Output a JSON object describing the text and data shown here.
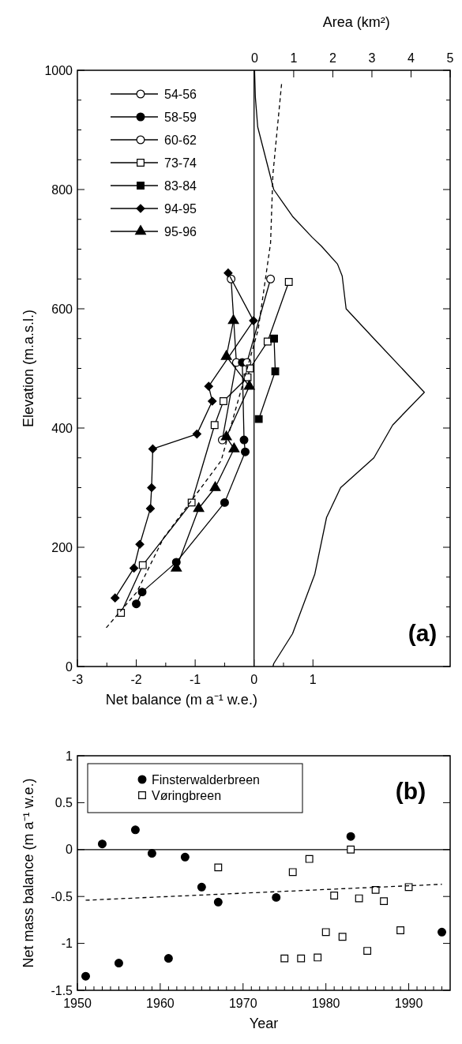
{
  "chart_data": [
    {
      "type": "line",
      "x2label": "Area (km²)",
      "xlabel": "Net balance (m a⁻¹ w.e.)",
      "ylabel": "Elevation (m.a.s.l.)",
      "xlim": [
        -3,
        3.33
      ],
      "ylim": [
        0,
        1000
      ],
      "x2lim": [
        -4.53,
        5
      ],
      "xticks": [
        -3,
        {
          "value": -2.5,
          "label": null
        },
        -2,
        {
          "value": -1.5,
          "label": null
        },
        -1,
        {
          "value": -0.5,
          "label": null
        },
        0,
        {
          "value": 0.5,
          "label": null
        },
        1
      ],
      "x2ticks": [
        0,
        1,
        2,
        3,
        4,
        5
      ],
      "yticks": [
        0,
        {
          "value": 50,
          "label": null
        },
        {
          "value": 100,
          "label": null
        },
        {
          "value": 150,
          "label": null
        },
        200,
        {
          "value": 250,
          "label": null
        },
        {
          "value": 300,
          "label": null
        },
        {
          "value": 350,
          "label": null
        },
        400,
        {
          "value": 450,
          "label": null
        },
        {
          "value": 500,
          "label": null
        },
        {
          "value": 550,
          "label": null
        },
        600,
        {
          "value": 650,
          "label": null
        },
        {
          "value": 700,
          "label": null
        },
        {
          "value": 750,
          "label": null
        },
        800,
        {
          "value": 850,
          "label": null
        },
        {
          "value": 900,
          "label": null
        },
        {
          "value": 950,
          "label": null
        },
        1000
      ],
      "legend": "top left",
      "annotations": [
        "(a)"
      ],
      "ref_lines": [
        {
          "axis": "x",
          "value": 0,
          "color": "#000000"
        }
      ],
      "series": [
        {
          "name": "54-56",
          "color": "#000000",
          "marker": "circle",
          "colors": [
            "#ffffff",
            "#ffffff",
            "#ffffff"
          ],
          "x": [
            -0.39,
            -0.3,
            -0.54
          ],
          "values": [
            650,
            510,
            380
          ]
        },
        {
          "name": "58-59",
          "color": "#000000",
          "marker": "circle",
          "x": [
            -0.2,
            -0.17,
            -0.15,
            -0.5,
            -1.32,
            -1.9,
            -2.0
          ],
          "values": [
            510,
            380,
            360,
            275,
            175,
            125,
            105
          ]
        },
        {
          "name": "60-62",
          "color": "#000000",
          "marker": "circle",
          "colors": [
            "#ffffff",
            "#ffffff"
          ],
          "x": [
            0.28,
            -0.12
          ],
          "values": [
            650,
            510
          ]
        },
        {
          "name": "73-74",
          "color": "#000000",
          "marker": "square",
          "colors": [
            "#ffffff",
            "#ffffff",
            "#ffffff",
            "#ffffff",
            "#ffffff",
            "#ffffff",
            "#ffffff",
            "#ffffff",
            "#ffffff"
          ],
          "x": [
            0.59,
            0.23,
            -0.07,
            -0.11,
            -0.52,
            -0.67,
            -1.06,
            -1.89,
            -2.26
          ],
          "values": [
            645,
            545,
            500,
            485,
            445,
            405,
            275,
            170,
            90
          ]
        },
        {
          "name": "83-84",
          "color": "#000000",
          "marker": "square",
          "x": [
            0.34,
            0.36,
            0.08
          ],
          "values": [
            550,
            495,
            415
          ]
        },
        {
          "name": "94-95",
          "color": "#000000",
          "marker": "diamond",
          "x": [
            -0.44,
            -0.01,
            -0.77,
            -0.71,
            -0.97,
            -1.72,
            -1.74,
            -1.76,
            -1.94,
            -2.04,
            -2.36
          ],
          "values": [
            660,
            580,
            470,
            445,
            390,
            365,
            300,
            265,
            205,
            165,
            115
          ]
        },
        {
          "name": "95-96",
          "color": "#000000",
          "marker": "triangle",
          "x": [
            -0.35,
            -0.47,
            -0.08,
            -0.47,
            -0.34,
            -0.66,
            -0.94,
            -1.32
          ],
          "values": [
            580,
            520,
            470,
            385,
            365,
            300,
            265,
            165
          ]
        },
        {
          "color": "#000000",
          "marker": "none",
          "line_style": "dashed",
          "x": [
            -2.51,
            -1.99,
            -1.54,
            -0.56,
            0.07,
            0.28,
            0.32,
            0.47
          ],
          "values": [
            65,
            125,
            215,
            345,
            565,
            710,
            825,
            980
          ]
        },
        {
          "color": "#000000",
          "marker": "none",
          "axis": "x2",
          "x": [
            0,
            0.02,
            0.08,
            0.49,
            0.97,
            1.47,
            1.71,
            2.12,
            2.24,
            2.34,
            3.05,
            4.34,
            3.53,
            3.05,
            2.2,
            1.84,
            1.54,
            0.97,
            0.49,
            0.47
          ],
          "values": [
            1000,
            955,
            905,
            800,
            755,
            720,
            705,
            675,
            655,
            600,
            550,
            460,
            405,
            350,
            300,
            250,
            155,
            55,
            5,
            0
          ]
        }
      ]
    },
    {
      "type": "scatter",
      "xlabel": "Year",
      "ylabel": "Net mass balance (m a⁻¹ w.e.)",
      "xlim": [
        1950,
        1995
      ],
      "ylim": [
        -1.5,
        1
      ],
      "xticks": [
        1950,
        {
          "value": 1951,
          "label": null
        },
        {
          "value": 1952,
          "label": null
        },
        {
          "value": 1953,
          "label": null
        },
        {
          "value": 1954,
          "label": null
        },
        {
          "value": 1955,
          "label": null
        },
        {
          "value": 1956,
          "label": null
        },
        {
          "value": 1957,
          "label": null
        },
        {
          "value": 1958,
          "label": null
        },
        {
          "value": 1959,
          "label": null
        },
        1960,
        {
          "value": 1961,
          "label": null
        },
        {
          "value": 1962,
          "label": null
        },
        {
          "value": 1963,
          "label": null
        },
        {
          "value": 1964,
          "label": null
        },
        {
          "value": 1965,
          "label": null
        },
        {
          "value": 1966,
          "label": null
        },
        {
          "value": 1967,
          "label": null
        },
        {
          "value": 1968,
          "label": null
        },
        {
          "value": 1969,
          "label": null
        },
        1970,
        {
          "value": 1971,
          "label": null
        },
        {
          "value": 1972,
          "label": null
        },
        {
          "value": 1973,
          "label": null
        },
        {
          "value": 1974,
          "label": null
        },
        {
          "value": 1975,
          "label": null
        },
        {
          "value": 1976,
          "label": null
        },
        {
          "value": 1977,
          "label": null
        },
        {
          "value": 1978,
          "label": null
        },
        {
          "value": 1979,
          "label": null
        },
        1980,
        {
          "value": 1981,
          "label": null
        },
        {
          "value": 1982,
          "label": null
        },
        {
          "value": 1983,
          "label": null
        },
        {
          "value": 1984,
          "label": null
        },
        {
          "value": 1985,
          "label": null
        },
        {
          "value": 1986,
          "label": null
        },
        {
          "value": 1987,
          "label": null
        },
        {
          "value": 1988,
          "label": null
        },
        {
          "value": 1989,
          "label": null
        },
        1990,
        {
          "value": 1991,
          "label": null
        },
        {
          "value": 1992,
          "label": null
        },
        {
          "value": 1993,
          "label": null
        },
        {
          "value": 1994,
          "label": null
        }
      ],
      "yticks": [
        -1.5,
        -1,
        -0.5,
        0,
        0.5,
        1
      ],
      "legend": "top left",
      "annotations": [
        "(b)"
      ],
      "ref_lines": [
        {
          "axis": "y",
          "value": 0,
          "color": "#000000"
        }
      ],
      "series": [
        {
          "name": "Finsterwalderbreen",
          "color": "#000000",
          "marker": "circle",
          "x": [
            1951,
            1953,
            1955,
            1957,
            1959,
            1961,
            1963,
            1965,
            1967,
            1974,
            1983,
            1994
          ],
          "values": [
            -1.35,
            0.06,
            -1.21,
            0.21,
            -0.04,
            -1.16,
            -0.08,
            -0.4,
            -0.56,
            -0.51,
            0.14,
            -0.88
          ]
        },
        {
          "name": "Vøringbreen",
          "color": "#000000",
          "marker": "square",
          "colors": [
            "#ffffff",
            "#ffffff",
            "#ffffff",
            "#ffffff",
            "#ffffff",
            "#ffffff",
            "#ffffff",
            "#ffffff",
            "#ffffff",
            "#ffffff",
            "#ffffff",
            "#ffffff",
            "#ffffff",
            "#ffffff",
            "#ffffff",
            "#ffffff"
          ],
          "x": [
            1967,
            1975,
            1976,
            1977,
            1978,
            1979,
            1980,
            1981,
            1982,
            1983,
            1984,
            1985,
            1986,
            1987,
            1989,
            1990
          ],
          "values": [
            -0.19,
            -1.16,
            -0.24,
            -1.16,
            -0.1,
            -1.15,
            -0.88,
            -0.49,
            -0.93,
            0,
            -0.52,
            -1.08,
            -0.43,
            -0.55,
            -0.86,
            -0.4
          ]
        },
        {
          "type": "line",
          "color": "#000000",
          "marker": "none",
          "line_style": "dashed",
          "x": [
            1951,
            1994
          ],
          "values": [
            -0.54,
            -0.37
          ]
        }
      ]
    }
  ]
}
